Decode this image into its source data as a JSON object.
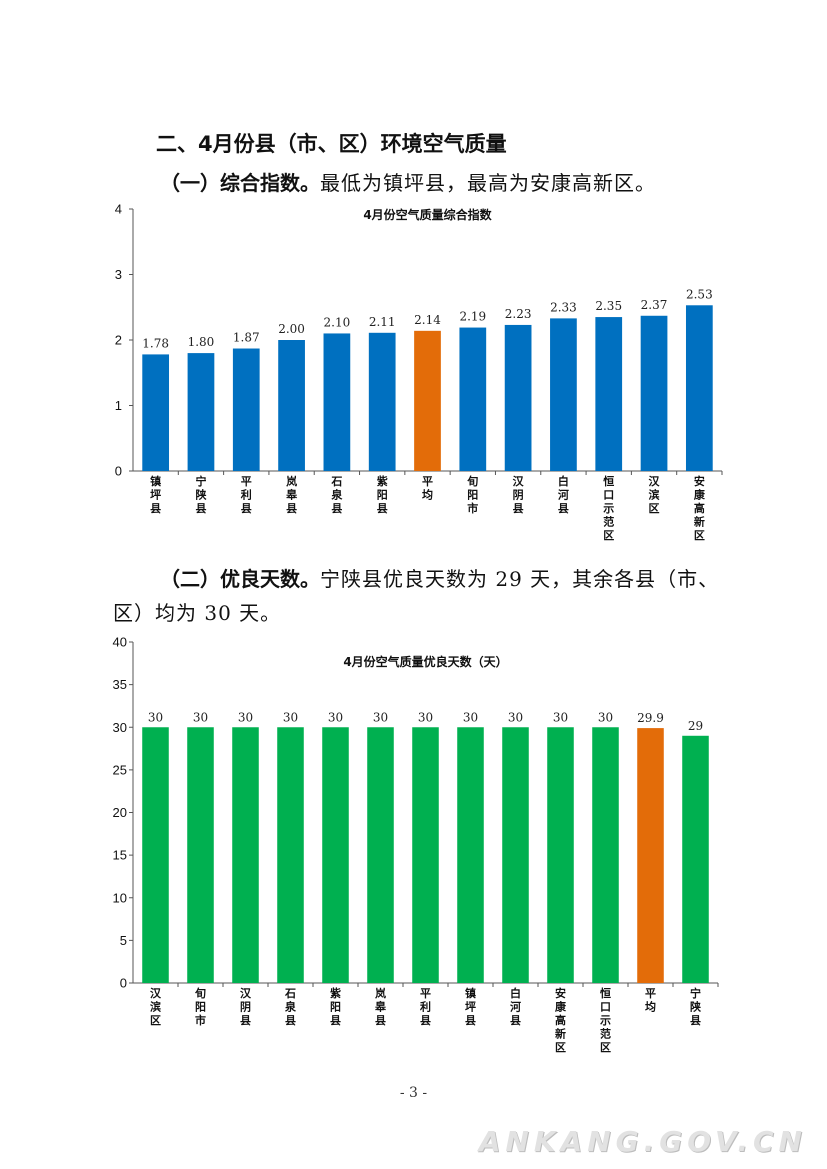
{
  "section": {
    "heading": "二、4月份县（市、区）环境空气质量"
  },
  "para1": {
    "lead": "（一）综合指数。",
    "text": "最低为镇坪县，最高为安康高新区。"
  },
  "para2": {
    "lead": "（二）优良天数。",
    "text_line1": "宁陕县优良天数为 29 天，其余各县（市、",
    "text_line2": "区）均为 30 天。"
  },
  "colors": {
    "chart1_bar": "#0070c0",
    "chart2_bar": "#00b050",
    "average_bar": "#e36c09"
  },
  "chart_data": [
    {
      "type": "bar",
      "title": "4月份空气质量综合指数",
      "xlabel": "",
      "ylabel": "",
      "ylim": [
        0,
        4
      ],
      "yticks": [
        0,
        1,
        2,
        3,
        4
      ],
      "grid": false,
      "categories": [
        "镇坪县",
        "宁陕县",
        "平利县",
        "岚皋县",
        "石泉县",
        "紫阳县",
        "平均",
        "旬阳市",
        "汉阴县",
        "白河县",
        "恒口示范区",
        "汉滨区",
        "安康高新区"
      ],
      "values": [
        1.78,
        1.8,
        1.87,
        2.0,
        2.1,
        2.11,
        2.14,
        2.19,
        2.23,
        2.33,
        2.35,
        2.37,
        2.53
      ],
      "labels": [
        "1.78",
        "1.80",
        "1.87",
        "2.00",
        "2.10",
        "2.11",
        "2.14",
        "2.19",
        "2.23",
        "2.33",
        "2.35",
        "2.37",
        "2.53"
      ],
      "highlight": "平均"
    },
    {
      "type": "bar",
      "title": "4月份空气质量优良天数（天）",
      "xlabel": "",
      "ylabel": "",
      "ylim": [
        0,
        40
      ],
      "yticks": [
        0,
        5,
        10,
        15,
        20,
        25,
        30,
        35,
        40
      ],
      "grid": false,
      "categories": [
        "汉滨区",
        "旬阳市",
        "汉阴县",
        "石泉县",
        "紫阳县",
        "岚皋县",
        "平利县",
        "镇坪县",
        "白河县",
        "安康高新区",
        "恒口示范区",
        "平均",
        "宁陕县"
      ],
      "values": [
        30,
        30,
        30,
        30,
        30,
        30,
        30,
        30,
        30,
        30,
        30,
        29.9,
        29
      ],
      "labels": [
        "30",
        "30",
        "30",
        "30",
        "30",
        "30",
        "30",
        "30",
        "30",
        "30",
        "30",
        "29.9",
        "29"
      ],
      "highlight": "平均"
    }
  ],
  "page_number": "- 3 -",
  "watermark": "ANKANG.GOV.CN"
}
